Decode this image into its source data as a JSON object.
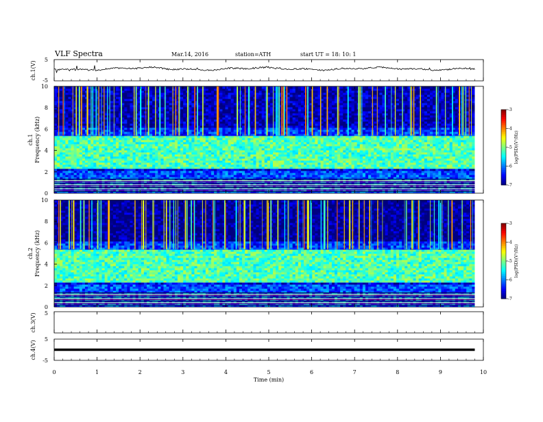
{
  "header": {
    "title": "VLF  Spectra",
    "date": "Mar.14, 2016",
    "station": "station=ATH",
    "start": "start  UT  =   18: 10: 1"
  },
  "chart_data": {
    "type": "heatmap",
    "x_axis": {
      "label": "Time  (min)",
      "range": [
        0,
        10
      ],
      "ticks": [
        "0",
        "1",
        "2",
        "3",
        "4",
        "5",
        "6",
        "7",
        "8",
        "9",
        "10"
      ]
    },
    "panels": [
      {
        "name": "ch.1(V)",
        "kind": "waveform",
        "ylim": [
          -5,
          5
        ],
        "yticks": [
          "5",
          "-5"
        ]
      },
      {
        "name": "ch.1",
        "kind": "spectrogram",
        "ylabel": "Frequency  (kHz)",
        "ylim": [
          0,
          10
        ],
        "yticks": [
          "0",
          "2",
          "4",
          "6",
          "8",
          "10"
        ],
        "colorbar": {
          "label": "log(PSD)(V²/Hz)",
          "range": [
            -7,
            -3
          ],
          "ticks": [
            "-3",
            "-4",
            "-5",
            "-6",
            "-7"
          ]
        }
      },
      {
        "name": "ch.2",
        "kind": "spectrogram",
        "ylabel": "Frequency  (kHz)",
        "ylim": [
          0,
          10
        ],
        "yticks": [
          "0",
          "2",
          "4",
          "6",
          "8",
          "10"
        ],
        "colorbar": {
          "label": "log(PSD)(V²/Hz)",
          "range": [
            -7,
            -3
          ],
          "ticks": [
            "-3",
            "-4",
            "-5",
            "-6",
            "-7"
          ]
        }
      },
      {
        "name": "ch.3(V)",
        "kind": "waveform",
        "ylim": [
          -5,
          5
        ],
        "yticks": [
          "5"
        ]
      },
      {
        "name": "ch.4(V)",
        "kind": "waveform",
        "ylim": [
          -5,
          5
        ],
        "yticks": [
          "5",
          "-5"
        ]
      }
    ],
    "grid": false,
    "data_end_min": 9.8,
    "spectral_bands_kHz": [
      {
        "from": 0.0,
        "to": 2.0,
        "level": -6.2
      },
      {
        "from": 2.0,
        "to": 2.3,
        "level": -6.6
      },
      {
        "from": 2.3,
        "to": 5.3,
        "level": -5.2
      },
      {
        "from": 5.3,
        "to": 6.0,
        "level": -6.3
      },
      {
        "from": 6.0,
        "to": 10.0,
        "level": -6.8
      }
    ]
  }
}
